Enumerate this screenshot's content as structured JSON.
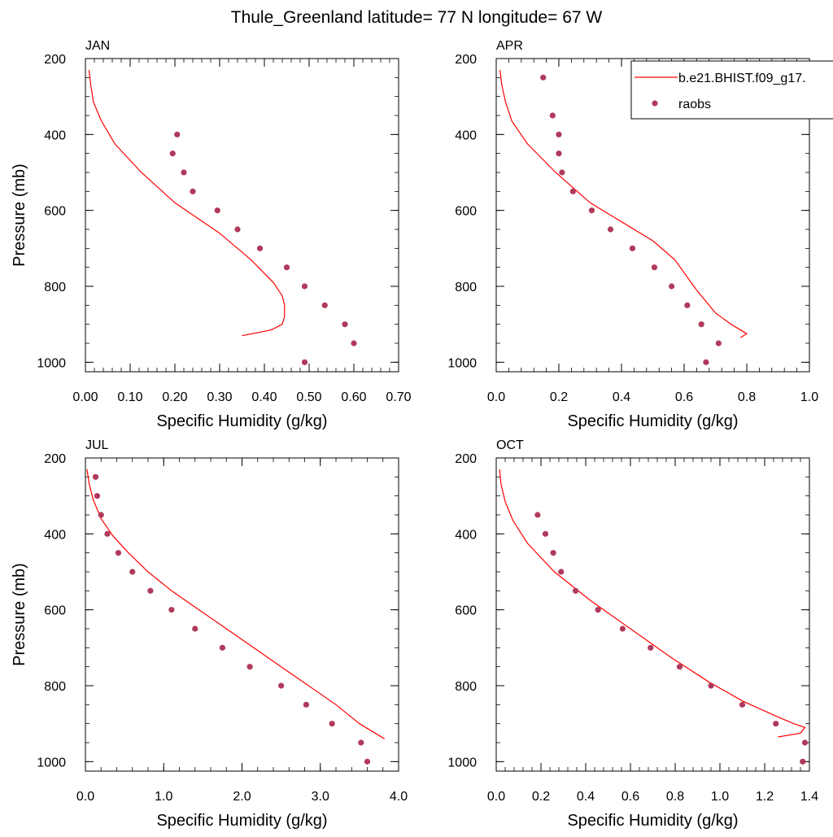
{
  "title": "Thule_Greenland  latitude= 77 N longitude= 67 W",
  "legend": {
    "model_label": "b.e21.BHIST.f09_g17.",
    "obs_label": "raobs",
    "placement": "top-right of APR panel"
  },
  "colors": {
    "model": "#ff0000",
    "obs": "#b03a5b"
  },
  "chart_data": [
    {
      "type": "line",
      "panel": "JAN",
      "title": "JAN",
      "xlabel": "Specific Humidity (g/kg)",
      "ylabel": "Pressure (mb)",
      "xlim": [
        0,
        0.7
      ],
      "ylim": [
        200,
        1025
      ],
      "y_inverted": true,
      "xticks": [
        0,
        0.1,
        0.2,
        0.3,
        0.4,
        0.5,
        0.6,
        0.7
      ],
      "xticklabels": [
        "0.00",
        "0.10",
        "0.20",
        "0.30",
        "0.40",
        "0.50",
        "0.60",
        "0.70"
      ],
      "yticks": [
        200,
        400,
        600,
        800,
        1000
      ],
      "yticklabels": [
        "200",
        "400",
        "600",
        "800",
        "1000"
      ],
      "model": {
        "x": [
          0.008,
          0.012,
          0.018,
          0.036,
          0.066,
          0.125,
          0.2,
          0.3,
          0.37,
          0.42,
          0.44,
          0.445,
          0.445,
          0.44,
          0.415,
          0.35
        ],
        "y": [
          230,
          270,
          315,
          365,
          425,
          500,
          580,
          660,
          730,
          790,
          825,
          850,
          880,
          900,
          915,
          930
        ]
      },
      "obs": {
        "x": [
          0.205,
          0.195,
          0.22,
          0.24,
          0.295,
          0.34,
          0.39,
          0.45,
          0.49,
          0.535,
          0.58,
          0.6,
          0.49
        ],
        "y": [
          400,
          450,
          500,
          550,
          600,
          650,
          700,
          750,
          800,
          850,
          900,
          950,
          1000
        ]
      }
    },
    {
      "type": "line",
      "panel": "APR",
      "title": "APR",
      "xlabel": "Specific Humidity (g/kg)",
      "ylabel": "",
      "xlim": [
        0,
        1.0
      ],
      "ylim": [
        200,
        1025
      ],
      "y_inverted": true,
      "xticks": [
        0,
        0.2,
        0.4,
        0.6,
        0.8,
        1.0
      ],
      "xticklabels": [
        "0.0",
        "0.2",
        "0.4",
        "0.6",
        "0.8",
        "1.0"
      ],
      "yticks": [
        200,
        400,
        600,
        800,
        1000
      ],
      "yticklabels": [
        "200",
        "400",
        "600",
        "800",
        "1000"
      ],
      "model": {
        "x": [
          0.012,
          0.018,
          0.03,
          0.05,
          0.1,
          0.19,
          0.3,
          0.4,
          0.5,
          0.57,
          0.64,
          0.7,
          0.75,
          0.8,
          0.78
        ],
        "y": [
          230,
          270,
          315,
          365,
          425,
          500,
          580,
          630,
          680,
          730,
          810,
          870,
          900,
          925,
          935
        ]
      },
      "obs": {
        "x": [
          0.15,
          0.18,
          0.2,
          0.2,
          0.21,
          0.245,
          0.305,
          0.365,
          0.435,
          0.505,
          0.56,
          0.61,
          0.655,
          0.71,
          0.67
        ],
        "y": [
          250,
          350,
          400,
          450,
          500,
          550,
          600,
          650,
          700,
          750,
          800,
          850,
          900,
          950,
          1000
        ]
      }
    },
    {
      "type": "line",
      "panel": "JUL",
      "title": "JUL",
      "xlabel": "Specific Humidity (g/kg)",
      "ylabel": "Pressure (mb)",
      "xlim": [
        0,
        4.0
      ],
      "ylim": [
        200,
        1025
      ],
      "y_inverted": true,
      "xticks": [
        0,
        1,
        2,
        3,
        4
      ],
      "xticklabels": [
        "0.0",
        "1.0",
        "2.0",
        "3.0",
        "4.0"
      ],
      "yticks": [
        200,
        400,
        600,
        800,
        1000
      ],
      "yticklabels": [
        "200",
        "400",
        "600",
        "800",
        "1000"
      ],
      "model": {
        "x": [
          0.02,
          0.05,
          0.1,
          0.2,
          0.35,
          0.55,
          0.8,
          1.1,
          1.45,
          1.8,
          2.15,
          2.5,
          2.85,
          3.2,
          3.5,
          3.82
        ],
        "y": [
          230,
          270,
          310,
          360,
          405,
          450,
          500,
          550,
          600,
          650,
          700,
          750,
          800,
          850,
          900,
          940
        ]
      },
      "obs": {
        "x": [
          0.13,
          0.15,
          0.2,
          0.28,
          0.42,
          0.6,
          0.83,
          1.1,
          1.4,
          1.75,
          2.1,
          2.5,
          2.82,
          3.15,
          3.52,
          3.6
        ],
        "y": [
          250,
          300,
          350,
          400,
          450,
          500,
          550,
          600,
          650,
          700,
          750,
          800,
          850,
          900,
          950,
          1000
        ]
      }
    },
    {
      "type": "line",
      "panel": "OCT",
      "title": "OCT",
      "xlabel": "Specific Humidity (g/kg)",
      "ylabel": "",
      "xlim": [
        0,
        1.4
      ],
      "ylim": [
        200,
        1025
      ],
      "y_inverted": true,
      "xticks": [
        0,
        0.2,
        0.4,
        0.6,
        0.8,
        1.0,
        1.2,
        1.4
      ],
      "xticklabels": [
        "0.0",
        "0.2",
        "0.4",
        "0.6",
        "0.8",
        "1.0",
        "1.2",
        "1.4"
      ],
      "yticks": [
        200,
        400,
        600,
        800,
        1000
      ],
      "yticklabels": [
        "200",
        "400",
        "600",
        "800",
        "1000"
      ],
      "model": {
        "x": [
          0.015,
          0.022,
          0.04,
          0.075,
          0.14,
          0.26,
          0.42,
          0.6,
          0.78,
          0.95,
          1.1,
          1.25,
          1.33,
          1.38,
          1.36,
          1.26
        ],
        "y": [
          230,
          270,
          315,
          365,
          425,
          500,
          575,
          650,
          725,
          790,
          840,
          880,
          900,
          910,
          925,
          935
        ]
      },
      "obs": {
        "x": [
          0.185,
          0.22,
          0.255,
          0.29,
          0.355,
          0.455,
          0.565,
          0.69,
          0.82,
          0.96,
          1.1,
          1.25,
          1.38,
          1.37
        ],
        "y": [
          350,
          400,
          450,
          500,
          550,
          600,
          650,
          700,
          750,
          800,
          850,
          900,
          950,
          1000
        ]
      }
    }
  ]
}
